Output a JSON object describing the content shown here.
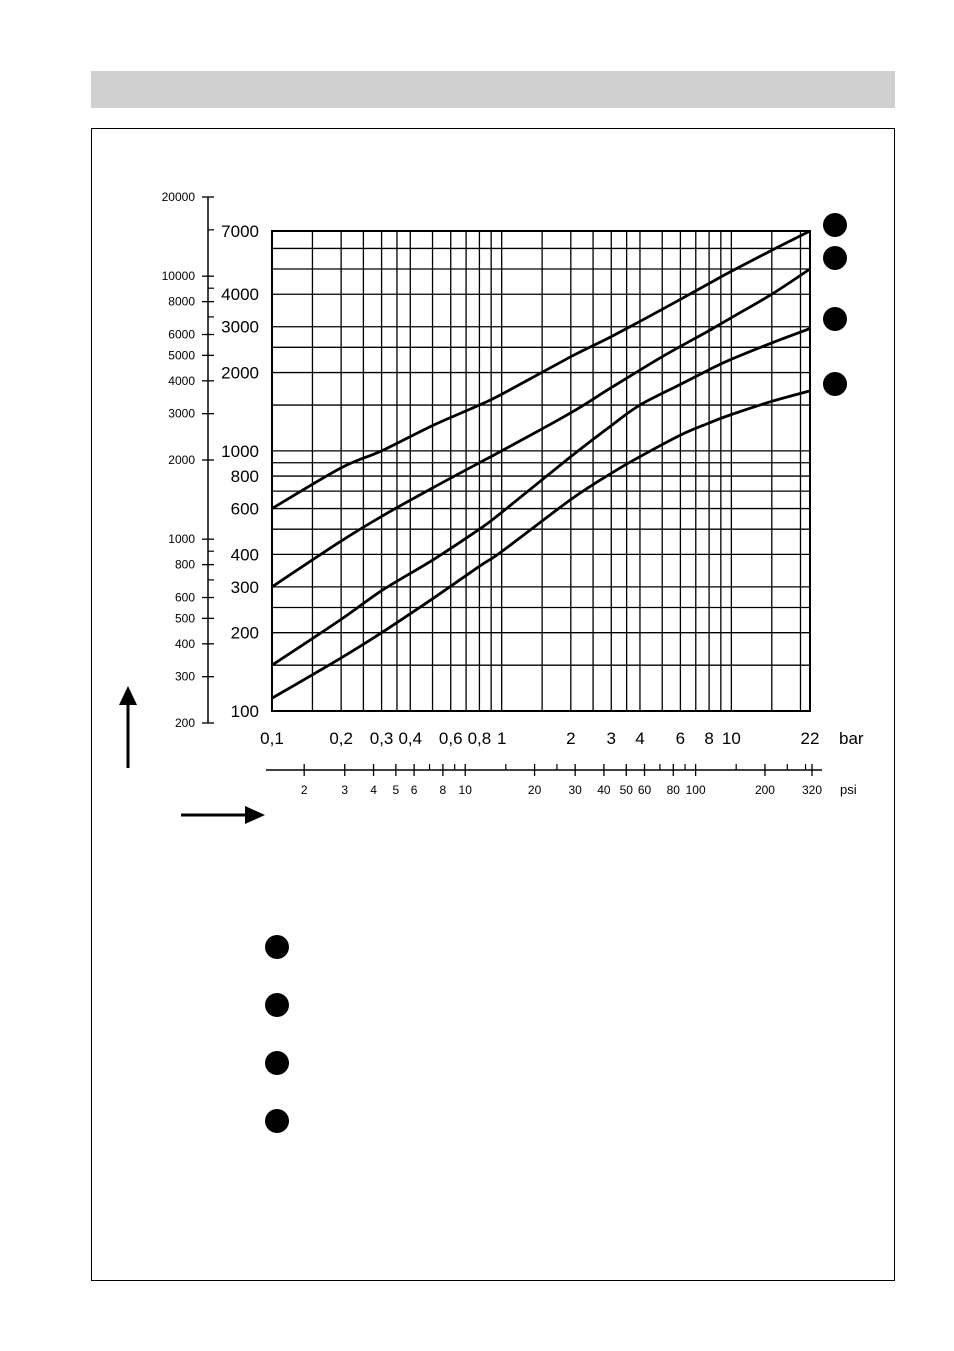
{
  "chart_data": {
    "type": "line",
    "x_scale": "log",
    "y_scale": "log",
    "grid": true,
    "x_axis_bar": {
      "unit": "bar",
      "range": [
        0.1,
        22
      ],
      "ticks": [
        {
          "value": 0.1,
          "label": "0,1"
        },
        {
          "value": 0.2,
          "label": "0,2"
        },
        {
          "value": 0.3,
          "label": "0,3"
        },
        {
          "value": 0.4,
          "label": "0,4"
        },
        {
          "value": 0.6,
          "label": "0,6"
        },
        {
          "value": 0.8,
          "label": "0,8"
        },
        {
          "value": 1,
          "label": "1"
        },
        {
          "value": 2,
          "label": "2"
        },
        {
          "value": 3,
          "label": "3"
        },
        {
          "value": 4,
          "label": "4"
        },
        {
          "value": 6,
          "label": "6"
        },
        {
          "value": 8,
          "label": "8"
        },
        {
          "value": 10,
          "label": "10"
        },
        {
          "value": 22,
          "label": "22"
        }
      ],
      "gridlines": [
        0.1,
        0.15,
        0.2,
        0.25,
        0.3,
        0.35,
        0.4,
        0.5,
        0.6,
        0.7,
        0.8,
        0.9,
        1,
        1.5,
        2,
        2.5,
        3,
        3.5,
        4,
        5,
        6,
        7,
        8,
        9,
        10,
        15,
        20,
        22
      ]
    },
    "x_axis_psi": {
      "unit": "psi",
      "range": [
        1.45,
        320
      ],
      "labeled_ticks": [
        {
          "value": 2,
          "label": "2"
        },
        {
          "value": 3,
          "label": "3"
        },
        {
          "value": 4,
          "label": "4"
        },
        {
          "value": 5,
          "label": "5"
        },
        {
          "value": 6,
          "label": "6"
        },
        {
          "value": 8,
          "label": "8"
        },
        {
          "value": 10,
          "label": "10"
        },
        {
          "value": 20,
          "label": "20"
        },
        {
          "value": 30,
          "label": "30"
        },
        {
          "value": 40,
          "label": "40"
        },
        {
          "value": 50,
          "label": "50"
        },
        {
          "value": 60,
          "label": "60"
        },
        {
          "value": 80,
          "label": "80"
        },
        {
          "value": 100,
          "label": "100"
        },
        {
          "value": 200,
          "label": "200"
        },
        {
          "value": 320,
          "label": "320"
        }
      ],
      "minor_ticks": [
        7,
        9,
        15,
        25,
        70,
        90,
        150,
        250,
        300
      ]
    },
    "y_axis_main": {
      "range": [
        100,
        7000
      ],
      "ticks": [
        {
          "value": 100,
          "label": "100"
        },
        {
          "value": 200,
          "label": "200"
        },
        {
          "value": 300,
          "label": "300"
        },
        {
          "value": 400,
          "label": "400"
        },
        {
          "value": 600,
          "label": "600"
        },
        {
          "value": 800,
          "label": "800"
        },
        {
          "value": 1000,
          "label": "1000"
        },
        {
          "value": 2000,
          "label": "2000"
        },
        {
          "value": 3000,
          "label": "3000"
        },
        {
          "value": 4000,
          "label": "4000"
        },
        {
          "value": 7000,
          "label": "7000"
        }
      ],
      "gridlines": [
        100,
        150,
        200,
        250,
        300,
        400,
        500,
        600,
        700,
        800,
        900,
        1000,
        1500,
        2000,
        2500,
        3000,
        4000,
        5000,
        6000,
        7000
      ]
    },
    "y_axis_secondary": {
      "range": [
        200,
        20000
      ],
      "labeled_ticks": [
        {
          "value": 200,
          "label": "200"
        },
        {
          "value": 300,
          "label": "300"
        },
        {
          "value": 400,
          "label": "400"
        },
        {
          "value": 500,
          "label": "500"
        },
        {
          "value": 600,
          "label": "600"
        },
        {
          "value": 800,
          "label": "800"
        },
        {
          "value": 1000,
          "label": "1000"
        },
        {
          "value": 2000,
          "label": "2000"
        },
        {
          "value": 3000,
          "label": "3000"
        },
        {
          "value": 4000,
          "label": "4000"
        },
        {
          "value": 5000,
          "label": "5000"
        },
        {
          "value": 6000,
          "label": "6000"
        },
        {
          "value": 8000,
          "label": "8000"
        },
        {
          "value": 10000,
          "label": "10000"
        },
        {
          "value": 20000,
          "label": "20000"
        }
      ],
      "minor_ticks": [
        700,
        900,
        7000,
        9000,
        15000
      ]
    },
    "series": [
      {
        "x": [
          0.1,
          0.2,
          0.3,
          0.5,
          0.8,
          1,
          2,
          3,
          5,
          8,
          10,
          15,
          22
        ],
        "y": [
          600,
          860,
          1000,
          1250,
          1500,
          1650,
          2300,
          2750,
          3500,
          4400,
          4900,
          5900,
          7000
        ]
      },
      {
        "x": [
          0.1,
          0.2,
          0.3,
          0.5,
          0.8,
          1,
          2,
          3,
          5,
          8,
          10,
          15,
          22
        ],
        "y": [
          300,
          450,
          560,
          720,
          900,
          1000,
          1400,
          1750,
          2300,
          2900,
          3250,
          4000,
          5000
        ]
      },
      {
        "x": [
          0.1,
          0.2,
          0.3,
          0.5,
          0.8,
          1,
          2,
          3,
          4,
          6,
          8,
          10,
          15,
          22
        ],
        "y": [
          150,
          225,
          290,
          380,
          500,
          580,
          950,
          1250,
          1500,
          1800,
          2050,
          2250,
          2600,
          2950
        ]
      },
      {
        "x": [
          0.1,
          0.2,
          0.3,
          0.5,
          0.8,
          1,
          2,
          3,
          4,
          6,
          8,
          10,
          15,
          22
        ],
        "y": [
          112,
          160,
          200,
          270,
          360,
          410,
          650,
          820,
          950,
          1150,
          1280,
          1380,
          1550,
          1700
        ]
      }
    ]
  },
  "labels": {
    "bar_unit": "bar",
    "psi_unit": "psi"
  }
}
